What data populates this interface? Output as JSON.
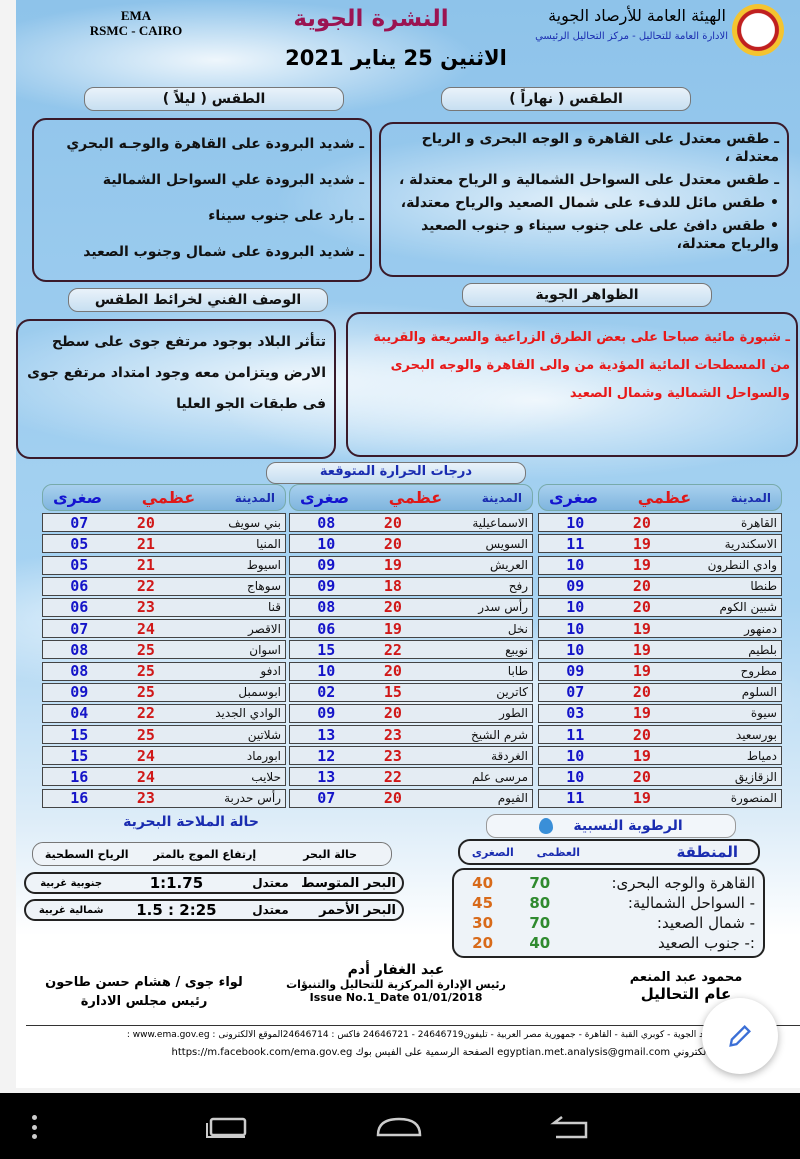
{
  "header": {
    "ema": "EMA",
    "rsmc": "RSMC - CAIRO",
    "title": "النشرة الجوية",
    "org": "الهيئة العامة للأرصاد الجوية",
    "dept": "الادارة العامة للتحاليل - مركز التحاليل الرئيسي",
    "date": "الاثنين  25 يناير 2021"
  },
  "day": {
    "title": "الطقس ( نهاراً )",
    "lines": [
      "ـ طقس  معتدل على القاهرة و الوجه البحرى و الرياح معتدلة ،",
      "ـ طقس معتدل على السواحل الشمالية و الرياح معتدلة ،",
      "• طقس مائل للدفء على  شمال الصعيد والرياح معتدلة،",
      "• طقس دافئ على على جنوب سيناء و جنوب الصعيد  والرياح معتدلة،"
    ]
  },
  "night": {
    "title": "الطقس ( ليلاً )",
    "lines": [
      "ـ شديد البرودة على القاهرة والوجـه البحري",
      "ـ شديد البرودة علي السواحل الشمالية",
      "ـ بارد على جنوب سيناء",
      "ـ شديد البرودة على شمال وجنوب الصعيد"
    ]
  },
  "phenomena": {
    "title": "الظواهر الجوية",
    "text": "ـ شبورة مائية صباحا على بعض الطرق الزراعية والسريعة والقريبة من المسطحات المائية المؤدية من والى  القاهرة والوجه البحرى والسواحل الشمالية  وشمال الصعيد"
  },
  "synoptic": {
    "title": "الوصف الفني لخرائط الطقس",
    "text": "تتأثر البلاد بوجود مرتفع جوى على سطح الارض ويتزامن معه وجود امتداد مرتفع جوى فى طبقات الجو العليا"
  },
  "temps": {
    "title": "درجات الحرارة المتوقعة",
    "col_city": "المدينة",
    "col_max": "عظمي",
    "col_min": "صغرى",
    "tables": [
      [
        [
          "القاهرة",
          "20",
          "10"
        ],
        [
          "الاسكندرية",
          "19",
          "11"
        ],
        [
          "وادي النطرون",
          "19",
          "10"
        ],
        [
          "طنطا",
          "20",
          "09"
        ],
        [
          "شبين الكوم",
          "20",
          "10"
        ],
        [
          "دمنهور",
          "19",
          "10"
        ],
        [
          "بلطيم",
          "19",
          "10"
        ],
        [
          "مطروح",
          "19",
          "09"
        ],
        [
          "السلوم",
          "20",
          "07"
        ],
        [
          "سيوة",
          "19",
          "03"
        ],
        [
          "بورسعيد",
          "20",
          "11"
        ],
        [
          "دمياط",
          "19",
          "10"
        ],
        [
          "الزقازيق",
          "20",
          "10"
        ],
        [
          "المنصورة",
          "19",
          "11"
        ]
      ],
      [
        [
          "الاسماعيلية",
          "20",
          "08"
        ],
        [
          "السويس",
          "20",
          "10"
        ],
        [
          "العريش",
          "19",
          "09"
        ],
        [
          "رفح",
          "18",
          "09"
        ],
        [
          "رأس سدر",
          "20",
          "08"
        ],
        [
          "نخل",
          "19",
          "06"
        ],
        [
          "نويبع",
          "22",
          "15"
        ],
        [
          "طابا",
          "20",
          "10"
        ],
        [
          "كاترين",
          "15",
          "02"
        ],
        [
          "الطور",
          "20",
          "09"
        ],
        [
          "شرم الشيخ",
          "23",
          "13"
        ],
        [
          "الغردقة",
          "23",
          "12"
        ],
        [
          "مرسى علم",
          "22",
          "13"
        ],
        [
          "الفيوم",
          "20",
          "07"
        ]
      ],
      [
        [
          "بني سويف",
          "20",
          "07"
        ],
        [
          "المنيا",
          "21",
          "05"
        ],
        [
          "اسيوط",
          "21",
          "05"
        ],
        [
          "سوهاج",
          "22",
          "06"
        ],
        [
          "قنا",
          "23",
          "06"
        ],
        [
          "الاقصر",
          "24",
          "07"
        ],
        [
          "اسوان",
          "25",
          "08"
        ],
        [
          "ادفو",
          "25",
          "08"
        ],
        [
          "ابوسمبل",
          "25",
          "09"
        ],
        [
          "الوادي الجديد",
          "22",
          "04"
        ],
        [
          "شلاتين",
          "25",
          "15"
        ],
        [
          "ابورماد",
          "24",
          "15"
        ],
        [
          "حلايب",
          "24",
          "16"
        ],
        [
          "رأس حدربة",
          "23",
          "16"
        ]
      ]
    ]
  },
  "sea": {
    "title": "حالة الملاحة البحرية",
    "col_state": "حالة البحر",
    "col_wave": "إرتفاع الموج بالمتر",
    "col_wind": "الرياح السطحية",
    "rows": [
      {
        "sea": "البحر المتوسط",
        "state": "معتدل",
        "wave": "1:1.75",
        "wind": "جنوبية غربية"
      },
      {
        "sea": "البحر الأحمر",
        "state": "معتدل",
        "wave": "1.5 : 2:25",
        "wind": "شمالية غربية"
      }
    ]
  },
  "humidity": {
    "title": "الرطوبة النسبية",
    "col_region": "المنطقة",
    "col_max": "العظمى",
    "col_min": "الصغرى",
    "rows": [
      {
        "region": "القاهرة والوجه البحرى:",
        "max": "70",
        "min": "40"
      },
      {
        "region": "-  السواحل الشمالية:",
        "max": "80",
        "min": "45"
      },
      {
        "region": "- شمال الصعيد:",
        "max": "70",
        "min": "30"
      },
      {
        "region": ":- جنوب الصعيد",
        "max": "40",
        "min": "20"
      }
    ]
  },
  "signatures": {
    "right_name": "محمود عبد المنعم",
    "right_title": "عام التحاليل",
    "center_name": "عبد الغفار أدم",
    "center_title": "رئيس الإدارة المركزية للتحاليل والتنبؤات",
    "issue": "Issue No.1_Date 01/01/2018",
    "left_name": "لواء جوى / هشام حسن طاحون",
    "left_title": "رئيس مجلس الادارة"
  },
  "contact": {
    "line1": "للأرصاد الجوية - كوبري القبة - القاهرة - جمهورية مصر العربية - تليفون24646719  -  24646721 فاكس : 24646714الموقع الالكترونى :   www.ema.gov.eg :",
    "line2": "يد الالكتروني egyptian.met.analysis@gmail.com   الصفحة الرسمية على الفيس بوك  https://m.facebook.com/ema.gov.eg"
  },
  "colors": {
    "title": "#9b1452",
    "max": "#d01818",
    "min": "#1414c8",
    "hum_max": "#2f8a2f",
    "hum_min": "#d86a1a",
    "nav": "#000000",
    "fab_icon": "#3b6fd6"
  }
}
